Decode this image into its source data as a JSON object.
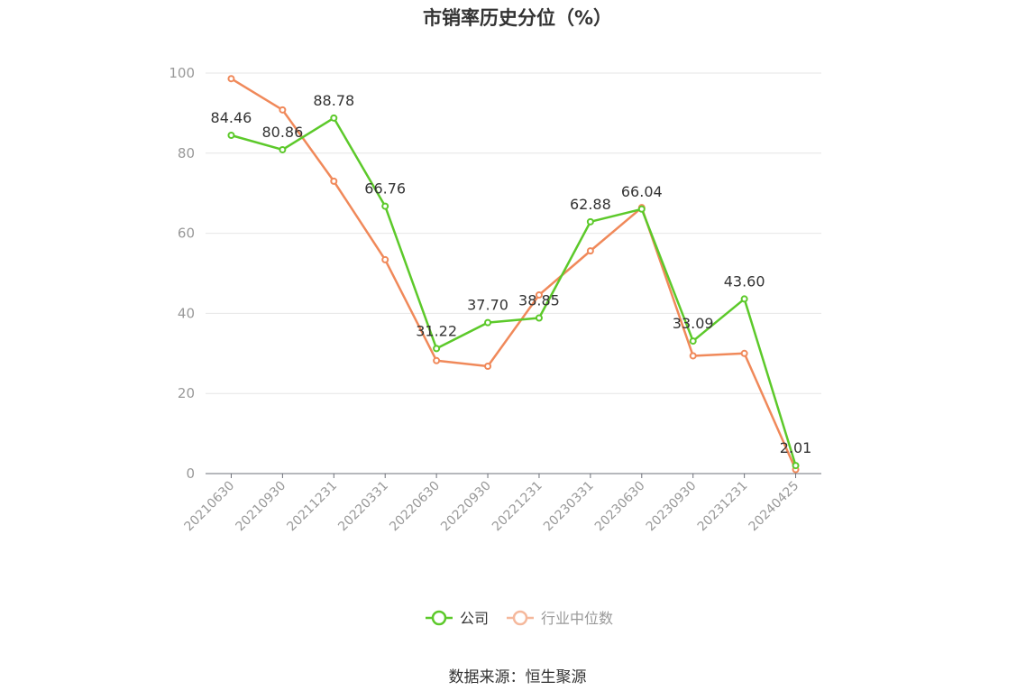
{
  "chart_data": {
    "type": "line",
    "title": "市销率历史分位（%）",
    "xlabel": "",
    "ylabel": "",
    "ylim": [
      0,
      100
    ],
    "yticks": [
      0,
      20,
      40,
      60,
      80,
      100
    ],
    "grid": true,
    "legend_position": "bottom-center",
    "categories": [
      "20210630",
      "20210930",
      "20211231",
      "20220331",
      "20220630",
      "20220930",
      "20221231",
      "20230331",
      "20230630",
      "20230930",
      "20231231",
      "20240425"
    ],
    "series": [
      {
        "name": "公司",
        "color": "#5cc92a",
        "show_labels": true,
        "values": [
          84.46,
          80.86,
          88.78,
          66.76,
          31.22,
          37.7,
          38.85,
          62.88,
          66.04,
          33.09,
          43.6,
          2.01
        ],
        "labels": [
          "84.46",
          "80.86",
          "88.78",
          "66.76",
          "31.22",
          "37.70",
          "38.85",
          "62.88",
          "66.04",
          "33.09",
          "43.60",
          "2.01"
        ]
      },
      {
        "name": "行业中位数",
        "color": "#f0895a",
        "show_labels": false,
        "values": [
          98.6,
          90.8,
          73.0,
          53.4,
          28.2,
          26.8,
          44.6,
          55.6,
          66.4,
          29.4,
          30.0,
          1.0
        ]
      }
    ]
  },
  "source_note": "数据来源：恒生聚源",
  "colors": {
    "grid": "#e6e6e6",
    "axis": "#6e7079",
    "tick_text": "#999999",
    "label_text": "#333333",
    "legend_inactive_text": "#999999",
    "legend_inactive_line": "#f5b89c"
  }
}
